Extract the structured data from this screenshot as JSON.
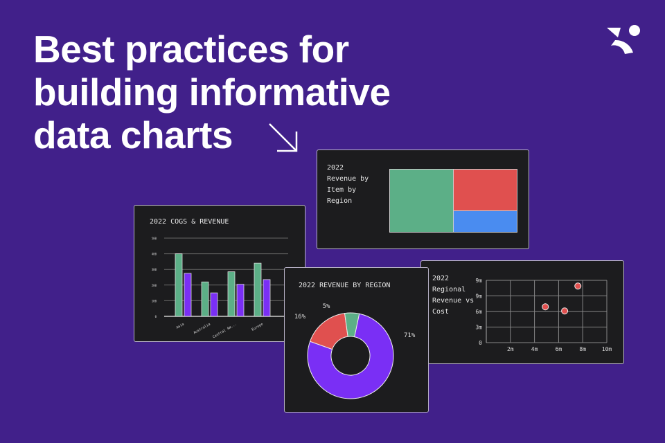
{
  "headline": [
    "Best practices for",
    "building informative",
    "data charts"
  ],
  "colors": {
    "background": "#41208a",
    "card": "#1c1c1e",
    "green": "#5caf87",
    "purple": "#7a2ff5",
    "red": "#e0504f",
    "blue": "#4a8cf0"
  },
  "icons": [
    "arrow-down-right-icon",
    "brand-logo-icon"
  ],
  "chart_data": [
    {
      "type": "bar",
      "title": "2022 COGS & REVENUE",
      "categories": [
        "Asia",
        "Australia",
        "Central Am...",
        "Europe"
      ],
      "series": [
        {
          "values": [
            400,
            220,
            285,
            340
          ],
          "color": "#5caf87"
        },
        {
          "values": [
            275,
            150,
            205,
            235
          ],
          "color": "#7a2ff5"
        }
      ],
      "yticks": [
        "0",
        "100",
        "200",
        "300",
        "400",
        "500"
      ],
      "ylim": [
        0,
        500
      ],
      "grid": true
    },
    {
      "type": "treemap",
      "title": "2022 Revenue by Item by Region",
      "colors": [
        "#5caf87",
        "#e0504f",
        "#4a8cf0"
      ]
    },
    {
      "type": "pie",
      "title": "2022 REVENUE BY REGION",
      "donut": true,
      "slices": [
        {
          "label": "71%",
          "value": 71,
          "color": "#7a2ff5"
        },
        {
          "label": "16%",
          "value": 16,
          "color": "#e0504f"
        },
        {
          "label": "5%",
          "value": 5,
          "color": "#5caf87"
        }
      ]
    },
    {
      "type": "scatter",
      "title": "2022 Regional Revenue vs Cost",
      "xticks": [
        "2m",
        "4m",
        "6m",
        "8m",
        "10m"
      ],
      "yticks": [
        "0",
        "3m",
        "6m",
        "9m",
        "9m"
      ],
      "xlim": [
        0,
        10
      ],
      "ylim": [
        0,
        12
      ],
      "grid": true,
      "points": [
        {
          "x": 4.9,
          "y": 6.9
        },
        {
          "x": 6.5,
          "y": 6.1
        },
        {
          "x": 7.6,
          "y": 10.9
        }
      ],
      "color": "#e0504f"
    }
  ]
}
